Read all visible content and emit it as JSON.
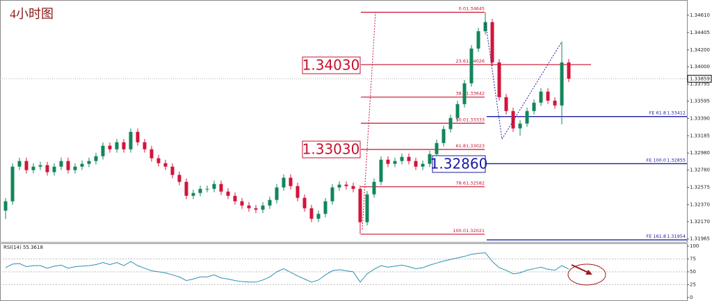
{
  "chart_data": {
    "type": "candlestick",
    "title": "4小时图",
    "ylim": [
      1.3193,
      1.3479
    ],
    "yticks": [
      {
        "value": 1.3461,
        "label": "1.34610"
      },
      1.34405,
      {
        "value": 1.342,
        "label": "1.34200"
      },
      {
        "value": 1.34,
        "label": "1.34000"
      },
      1.33795,
      1.33595,
      {
        "value": 1.3339,
        "label": "1.33390"
      },
      1.33185,
      {
        "value": 1.3298,
        "label": "1.32980"
      },
      {
        "value": 1.3278,
        "label": "1.32780"
      },
      1.32575,
      {
        "value": 1.3237,
        "label": "1.32370"
      },
      {
        "value": 1.3217,
        "label": "1.32170"
      },
      1.31965
    ],
    "up_color": "#12865a",
    "down_color": "#d3143a",
    "last_price": 1.33859,
    "ohlc": [
      [
        1.323,
        1.3245,
        1.322,
        1.3241
      ],
      [
        1.3241,
        1.3286,
        1.3237,
        1.3282
      ],
      [
        1.3282,
        1.32926,
        1.3278,
        1.32886
      ],
      [
        1.32886,
        1.32926,
        1.32739,
        1.32779
      ],
      [
        1.32779,
        1.3286,
        1.32739,
        1.3282
      ],
      [
        1.3282,
        1.32877,
        1.3278,
        1.32837
      ],
      [
        1.32837,
        1.32877,
        1.32715,
        1.32755
      ],
      [
        1.32755,
        1.3286,
        1.32715,
        1.3282
      ],
      [
        1.3282,
        1.32926,
        1.3278,
        1.32886
      ],
      [
        1.32886,
        1.32926,
        1.32739,
        1.32779
      ],
      [
        1.32779,
        1.3286,
        1.32739,
        1.3282
      ],
      [
        1.3282,
        1.32893,
        1.3278,
        1.32853
      ],
      [
        1.32853,
        1.32926,
        1.32813,
        1.32886
      ],
      [
        1.32886,
        1.32983,
        1.32846,
        1.32943
      ],
      [
        1.32943,
        1.33107,
        1.32903,
        1.33067
      ],
      [
        1.33067,
        1.33107,
        1.32985,
        1.33025
      ],
      [
        1.33025,
        1.33148,
        1.32985,
        1.33108
      ],
      [
        1.33108,
        1.33148,
        1.32985,
        1.33025
      ],
      [
        1.33025,
        1.33271,
        1.32985,
        1.33231
      ],
      [
        1.33231,
        1.33271,
        1.33068,
        1.33108
      ],
      [
        1.33108,
        1.33148,
        1.32985,
        1.33025
      ],
      [
        1.33025,
        1.33065,
        1.32879,
        1.32919
      ],
      [
        1.32919,
        1.32959,
        1.32821,
        1.32861
      ],
      [
        1.32861,
        1.32901,
        1.3278,
        1.3282
      ],
      [
        1.3282,
        1.3286,
        1.32682,
        1.32722
      ],
      [
        1.32722,
        1.32762,
        1.326,
        1.3264
      ],
      [
        1.3264,
        1.3268,
        1.32435,
        1.32475
      ],
      [
        1.32475,
        1.32548,
        1.32435,
        1.32508
      ],
      [
        1.32508,
        1.32597,
        1.32468,
        1.32557
      ],
      [
        1.32557,
        1.32597,
        1.32517,
        1.32557
      ],
      [
        1.32557,
        1.32655,
        1.32517,
        1.32615
      ],
      [
        1.32615,
        1.32655,
        1.32485,
        1.32525
      ],
      [
        1.32525,
        1.32565,
        1.32435,
        1.32475
      ],
      [
        1.32475,
        1.32515,
        1.3237,
        1.3241
      ],
      [
        1.3241,
        1.3245,
        1.3232,
        1.3236
      ],
      [
        1.3236,
        1.324,
        1.32288,
        1.32328
      ],
      [
        1.32328,
        1.32368,
        1.32271,
        1.32311
      ],
      [
        1.32311,
        1.324,
        1.32271,
        1.3236
      ],
      [
        1.3236,
        1.32466,
        1.3232,
        1.32426
      ],
      [
        1.32426,
        1.32614,
        1.32386,
        1.32574
      ],
      [
        1.32574,
        1.32729,
        1.32534,
        1.32689
      ],
      [
        1.32689,
        1.32729,
        1.3255,
        1.3259
      ],
      [
        1.3259,
        1.3263,
        1.32411,
        1.32451
      ],
      [
        1.32451,
        1.32491,
        1.32288,
        1.32328
      ],
      [
        1.32328,
        1.32368,
        1.32164,
        1.32204
      ],
      [
        1.32204,
        1.32302,
        1.32164,
        1.32262
      ],
      [
        1.32262,
        1.3245,
        1.32222,
        1.3241
      ],
      [
        1.3241,
        1.32614,
        1.3237,
        1.32574
      ],
      [
        1.32574,
        1.32647,
        1.32534,
        1.32607
      ],
      [
        1.32607,
        1.32647,
        1.3255,
        1.3259
      ],
      [
        1.3259,
        1.3263,
        1.32517,
        1.32557
      ],
      [
        1.32557,
        1.32597,
        1.32021,
        1.32163
      ],
      [
        1.32163,
        1.32532,
        1.32123,
        1.32492
      ],
      [
        1.32492,
        1.3268,
        1.32452,
        1.3264
      ],
      [
        1.3264,
        1.32942,
        1.326,
        1.32902
      ],
      [
        1.32902,
        1.32942,
        1.32813,
        1.32853
      ],
      [
        1.32853,
        1.32926,
        1.32813,
        1.32886
      ],
      [
        1.32886,
        1.32975,
        1.32846,
        1.32935
      ],
      [
        1.32935,
        1.32975,
        1.32846,
        1.32886
      ],
      [
        1.32886,
        1.32926,
        1.3278,
        1.3282
      ],
      [
        1.3282,
        1.32893,
        1.3278,
        1.32853
      ],
      [
        1.32853,
        1.33008,
        1.32813,
        1.32968
      ],
      [
        1.32968,
        1.33139,
        1.32928,
        1.33099
      ],
      [
        1.33099,
        1.33304,
        1.33059,
        1.33264
      ],
      [
        1.33264,
        1.33435,
        1.33224,
        1.33395
      ],
      [
        1.33395,
        1.33599,
        1.33355,
        1.33559
      ],
      [
        1.33559,
        1.33845,
        1.33519,
        1.33805
      ],
      [
        1.33805,
        1.34256,
        1.33765,
        1.34216
      ],
      [
        1.34216,
        1.34461,
        1.34176,
        1.34421
      ],
      [
        1.34421,
        1.34645,
        1.34381,
        1.34528
      ],
      [
        1.34528,
        1.34568,
        1.34012,
        1.34052
      ],
      [
        1.34052,
        1.34092,
        1.33601,
        1.33641
      ],
      [
        1.33641,
        1.33681,
        1.33437,
        1.33477
      ],
      [
        1.33477,
        1.33517,
        1.33232,
        1.33272
      ],
      [
        1.33272,
        1.33369,
        1.33185,
        1.33329
      ],
      [
        1.33329,
        1.33517,
        1.33289,
        1.33477
      ],
      [
        1.33477,
        1.33616,
        1.33437,
        1.33576
      ],
      [
        1.33576,
        1.33747,
        1.33536,
        1.33707
      ],
      [
        1.33707,
        1.33747,
        1.3356,
        1.336
      ],
      [
        1.336,
        1.3364,
        1.33503,
        1.33543
      ],
      [
        1.33543,
        1.343,
        1.3332,
        1.34052
      ],
      [
        1.34052,
        1.34092,
        1.33819,
        1.33859
      ]
    ],
    "fib_color": "#c8102e",
    "fib": [
      {
        "level": "0.0",
        "price": 1.34645
      },
      {
        "level": "23.6",
        "price": 1.34026
      },
      {
        "level": "38.2",
        "price": 1.33642
      },
      {
        "level": "50.0",
        "price": 1.33333
      },
      {
        "level": "61.8",
        "price": 1.33023
      },
      {
        "level": "78.6",
        "price": 1.32582
      },
      {
        "level": "100.0",
        "price": 1.32021
      }
    ],
    "fe_color": "#1a1aa6",
    "fe": [
      {
        "level": "FE 61.8",
        "price": 1.33412
      },
      {
        "level": "FE 100.0",
        "price": 1.32855
      },
      {
        "level": "FE 161.8",
        "price": 1.31954
      }
    ],
    "annotations": [
      "1.34030",
      "1.33030",
      "1.32860"
    ],
    "rsi": {
      "label": "RSI(14) 55.3618",
      "color": "#2a8fb0",
      "ylim": [
        0,
        100
      ],
      "yticks": [
        100,
        75,
        50,
        25,
        0
      ],
      "values": [
        58,
        65,
        66,
        60,
        62,
        62,
        57,
        61,
        63,
        57,
        60,
        61,
        62,
        64,
        68,
        64,
        68,
        62,
        70,
        62,
        57,
        52,
        50,
        48,
        44,
        40,
        33,
        36,
        40,
        40,
        44,
        38,
        36,
        33,
        31,
        30,
        30,
        34,
        40,
        50,
        56,
        49,
        42,
        36,
        30,
        34,
        44,
        52,
        54,
        52,
        50,
        30,
        46,
        55,
        62,
        59,
        61,
        63,
        60,
        56,
        58,
        63,
        67,
        71,
        74,
        77,
        80,
        84,
        86,
        87,
        70,
        58,
        53,
        46,
        48,
        53,
        56,
        59,
        55,
        53,
        62,
        55.3618
      ]
    }
  }
}
